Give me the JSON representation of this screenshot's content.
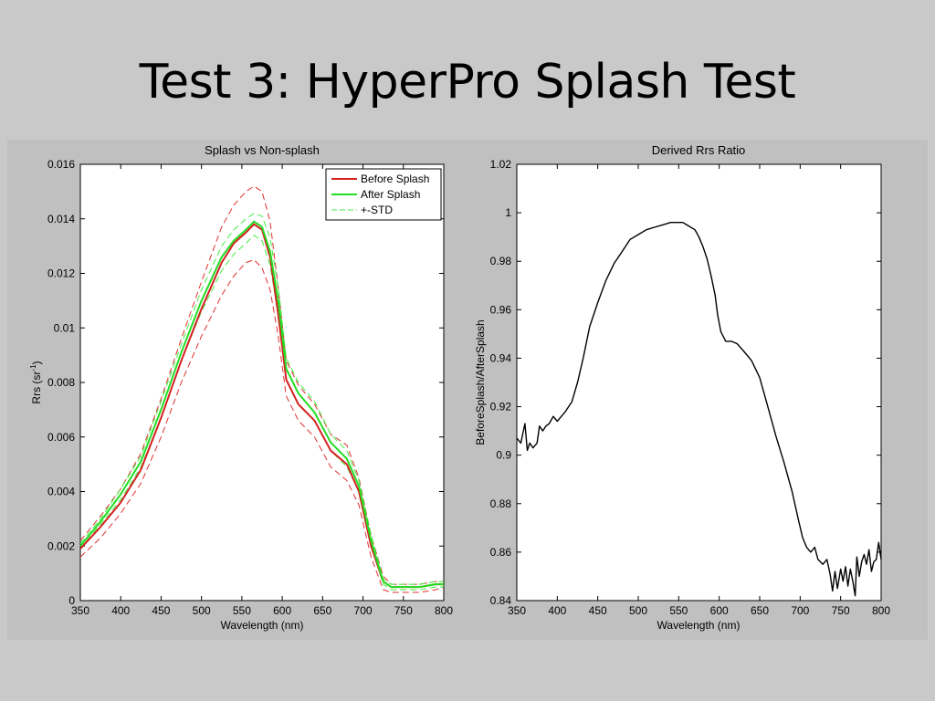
{
  "slide": {
    "title": "Test 3: HyperPro Splash Test"
  },
  "colors": {
    "before": "#d42020",
    "after": "#22dd22",
    "std_before": "#e03030",
    "std_after": "#44ee44",
    "ratio": "#000000"
  },
  "chart_data": [
    {
      "type": "line",
      "title": "Splash vs Non-splash",
      "xlabel": "Wavelength (nm)",
      "ylabel": "Rrs (sr",
      "ylabel_sup": "-1",
      "ylabel_end": ")",
      "xlim": [
        350,
        800
      ],
      "ylim": [
        0,
        0.016
      ],
      "xticks": [
        350,
        400,
        450,
        500,
        550,
        600,
        650,
        700,
        750,
        800
      ],
      "yticks": [
        0,
        0.002,
        0.004,
        0.006,
        0.008,
        0.01,
        0.012,
        0.014,
        0.016
      ],
      "ytick_labels": [
        "0",
        "0.002",
        "0.004",
        "0.006",
        "0.008",
        "0.01",
        "0.012",
        "0.014",
        "0.016"
      ],
      "grid": false,
      "legend": {
        "placement": "top-right",
        "entries": [
          {
            "label": "Before Splash",
            "style": "solid",
            "color": "#d42020"
          },
          {
            "label": "After Splash",
            "style": "solid",
            "color": "#22dd22"
          },
          {
            "label": "+-STD",
            "style": "dashed",
            "color": "#44ee44"
          }
        ]
      },
      "x": [
        350,
        375,
        400,
        425,
        450,
        475,
        500,
        525,
        540,
        555,
        565,
        575,
        585,
        595,
        605,
        620,
        640,
        660,
        680,
        695,
        710,
        725,
        735,
        750,
        770,
        790,
        800
      ],
      "series": [
        {
          "name": "Before Splash",
          "style": "solid",
          "color": "#d42020",
          "values": [
            0.0019,
            0.0027,
            0.0036,
            0.0048,
            0.0067,
            0.0088,
            0.0107,
            0.0124,
            0.0131,
            0.0135,
            0.0138,
            0.0136,
            0.0126,
            0.0105,
            0.0081,
            0.0072,
            0.0066,
            0.0055,
            0.005,
            0.004,
            0.002,
            0.0007,
            0.0005,
            0.0005,
            0.0005,
            0.0006,
            0.0006
          ]
        },
        {
          "name": "After Splash",
          "style": "solid",
          "color": "#22dd22",
          "values": [
            0.002,
            0.0029,
            0.0039,
            0.0051,
            0.007,
            0.0091,
            0.011,
            0.0126,
            0.0132,
            0.0136,
            0.0139,
            0.0137,
            0.0128,
            0.011,
            0.0085,
            0.0076,
            0.0069,
            0.0058,
            0.0052,
            0.0042,
            0.0022,
            0.0007,
            0.0005,
            0.0005,
            0.0005,
            0.0006,
            0.0006
          ]
        },
        {
          "name": "",
          "style": "dashed",
          "color": "#e03030",
          "values": [
            0.0016,
            0.0023,
            0.0032,
            0.0043,
            0.006,
            0.008,
            0.0097,
            0.0112,
            0.0119,
            0.0124,
            0.0125,
            0.0122,
            0.0114,
            0.0097,
            0.0075,
            0.0066,
            0.006,
            0.0049,
            0.0044,
            0.0035,
            0.0016,
            0.0004,
            0.0003,
            0.0003,
            0.0003,
            0.0004,
            0.0005
          ]
        },
        {
          "name": "",
          "style": "dashed",
          "color": "#e03030",
          "values": [
            0.0022,
            0.0031,
            0.0041,
            0.0054,
            0.0074,
            0.0096,
            0.0117,
            0.0137,
            0.0145,
            0.015,
            0.0152,
            0.015,
            0.0139,
            0.0115,
            0.0088,
            0.0079,
            0.0072,
            0.0061,
            0.0057,
            0.0045,
            0.0024,
            0.0009,
            0.0006,
            0.0006,
            0.0006,
            0.0007,
            0.0007
          ]
        },
        {
          "name": "",
          "style": "dashed",
          "color": "#44ee44",
          "values": [
            0.0019,
            0.0028,
            0.0037,
            0.0049,
            0.0067,
            0.0088,
            0.0106,
            0.0121,
            0.0127,
            0.0131,
            0.0134,
            0.0132,
            0.0123,
            0.0105,
            0.0081,
            0.0072,
            0.0066,
            0.0055,
            0.0049,
            0.004,
            0.002,
            0.0006,
            0.0004,
            0.0004,
            0.0004,
            0.0005,
            0.0005
          ]
        },
        {
          "name": "",
          "style": "dashed",
          "color": "#44ee44",
          "values": [
            0.0021,
            0.003,
            0.0041,
            0.0053,
            0.0073,
            0.0094,
            0.0114,
            0.013,
            0.0136,
            0.014,
            0.0142,
            0.0141,
            0.0133,
            0.0115,
            0.0089,
            0.008,
            0.0073,
            0.0061,
            0.0055,
            0.0044,
            0.0024,
            0.0008,
            0.0006,
            0.0006,
            0.0006,
            0.0007,
            0.0007
          ]
        }
      ]
    },
    {
      "type": "line",
      "title": "Derived Rrs Ratio",
      "xlabel": "Wavelength (nm)",
      "ylabel": "BeforeSplash/AfterSplash",
      "xlim": [
        350,
        800
      ],
      "ylim": [
        0.84,
        1.02
      ],
      "xticks": [
        350,
        400,
        450,
        500,
        550,
        600,
        650,
        700,
        750,
        800
      ],
      "yticks": [
        0.84,
        0.86,
        0.88,
        0.9,
        0.92,
        0.94,
        0.96,
        0.98,
        1,
        1.02
      ],
      "ytick_labels": [
        "0.84",
        "0.86",
        "0.88",
        "0.9",
        "0.92",
        "0.94",
        "0.96",
        "0.98",
        "1",
        "1.02"
      ],
      "grid": false,
      "x": [
        350,
        355,
        360,
        363,
        366,
        370,
        375,
        378,
        382,
        386,
        390,
        395,
        400,
        405,
        410,
        418,
        425,
        432,
        440,
        450,
        460,
        470,
        480,
        490,
        500,
        510,
        520,
        530,
        540,
        550,
        555,
        560,
        570,
        575,
        580,
        585,
        590,
        595,
        598,
        602,
        608,
        615,
        622,
        630,
        640,
        650,
        660,
        670,
        680,
        690,
        698,
        703,
        708,
        713,
        718,
        722,
        728,
        733,
        737,
        740,
        743,
        746,
        750,
        753,
        756,
        759,
        762,
        765,
        768,
        770,
        773,
        776,
        779,
        782,
        785,
        788,
        791,
        794,
        797,
        800
      ],
      "series": [
        {
          "name": "",
          "style": "solid",
          "color": "#000000",
          "values": [
            0.907,
            0.905,
            0.913,
            0.902,
            0.905,
            0.903,
            0.905,
            0.912,
            0.91,
            0.912,
            0.913,
            0.916,
            0.914,
            0.916,
            0.918,
            0.922,
            0.93,
            0.94,
            0.953,
            0.963,
            0.972,
            0.979,
            0.984,
            0.989,
            0.991,
            0.993,
            0.994,
            0.995,
            0.996,
            0.996,
            0.996,
            0.995,
            0.993,
            0.99,
            0.986,
            0.981,
            0.974,
            0.966,
            0.958,
            0.951,
            0.947,
            0.947,
            0.946,
            0.943,
            0.939,
            0.932,
            0.92,
            0.908,
            0.897,
            0.885,
            0.873,
            0.866,
            0.862,
            0.86,
            0.862,
            0.857,
            0.855,
            0.857,
            0.851,
            0.844,
            0.852,
            0.845,
            0.853,
            0.848,
            0.854,
            0.846,
            0.853,
            0.848,
            0.842,
            0.858,
            0.85,
            0.856,
            0.859,
            0.855,
            0.861,
            0.852,
            0.856,
            0.857,
            0.864,
            0.857
          ]
        }
      ]
    }
  ]
}
